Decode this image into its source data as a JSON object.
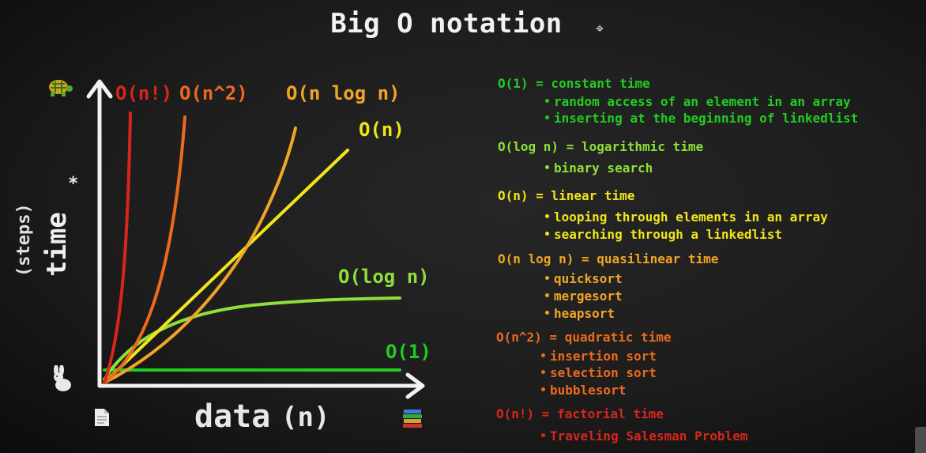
{
  "title": "Big O notation",
  "colors": {
    "o1": "#22cc22",
    "ologn": "#8ee038",
    "on": "#f1e51a",
    "onlogn": "#f0a526",
    "on2": "#ec6a1e",
    "onfact": "#d8261c",
    "axis": "#f2f2f2"
  },
  "chart": {
    "y_label": "time",
    "y_unit": "(steps)",
    "y_asterisk": "*",
    "x_label": "data",
    "x_unit": "(n)",
    "top_icon": "turtle-icon",
    "bottom_icon": "rabbit-icon",
    "x_start_icon": "document-icon",
    "x_end_icon": "book-stack-icon",
    "curve_labels": {
      "onfact": "O(n!)",
      "on2": "O(n^2)",
      "onlogn": "O(n log n)",
      "on": "O(n)",
      "ologn": "O(log n)",
      "o1": "O(1)"
    }
  },
  "legend": [
    {
      "heading": "O(1) = constant time",
      "items": [
        "random access of an element in an array",
        "inserting at the beginning of linkedlist"
      ]
    },
    {
      "heading": "O(log n) = logarithmic time",
      "items": [
        "binary search"
      ]
    },
    {
      "heading": "O(n) = linear time",
      "items": [
        "looping through elements in an array",
        "searching through a linkedlist"
      ]
    },
    {
      "heading": "O(n log n) = quasilinear time",
      "items": [
        "quicksort",
        "mergesort",
        "heapsort"
      ]
    },
    {
      "heading": "O(n^2) = quadratic time",
      "items": [
        "insertion sort",
        "selection sort",
        "bubblesort"
      ]
    },
    {
      "heading": "O(n!) = factorial time",
      "items": [
        "Traveling Salesman Problem"
      ]
    }
  ]
}
